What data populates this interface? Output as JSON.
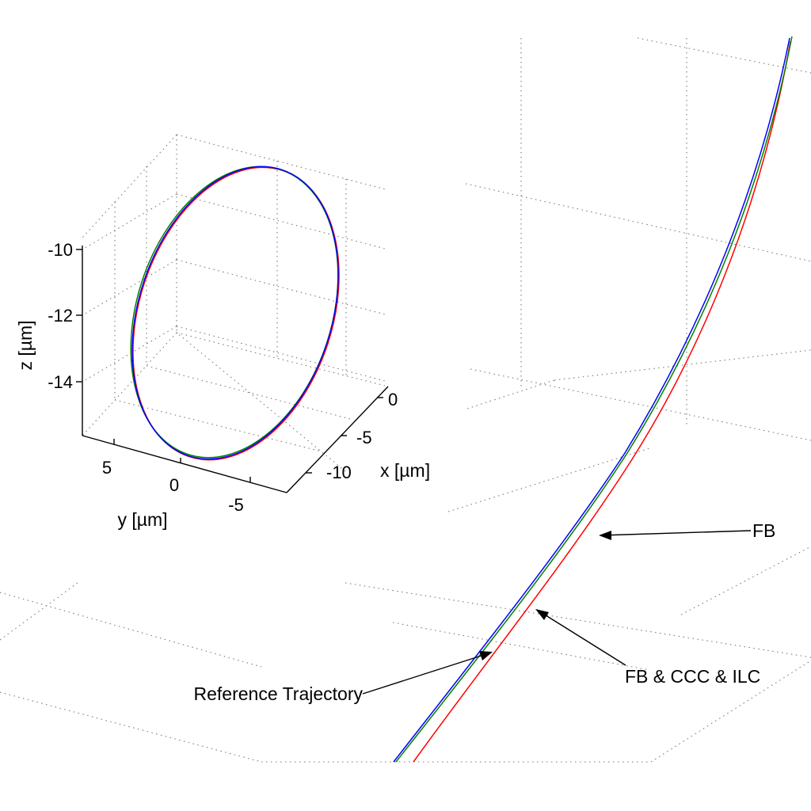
{
  "chart_data": [
    {
      "type": "line",
      "subplot": "inset-3d",
      "title": "",
      "xlabel": "x [µm]",
      "ylabel": "y [µm]",
      "zlabel": "z [µm]",
      "x_ticks": [
        "0",
        "-5",
        "-10"
      ],
      "y_ticks": [
        "5",
        "0",
        "-5"
      ],
      "z_ticks": [
        "-10",
        "-12",
        "-14"
      ],
      "grid": true,
      "series": [
        {
          "color": "#0000ff",
          "shape": "circle"
        },
        {
          "color": "#ff0000",
          "shape": "circle"
        },
        {
          "color": "#008000",
          "shape": "circle"
        }
      ]
    },
    {
      "type": "line",
      "subplot": "zoomed-3d",
      "title": "",
      "grid": true,
      "series": [
        {
          "name": "Reference Trajectory",
          "color": "#0000ff"
        },
        {
          "name": "FB",
          "color": "#ff0000"
        },
        {
          "name": "FB & CCC & ILC",
          "color": "#008000"
        }
      ],
      "annotations": [
        "FB",
        "FB & CCC & ILC",
        "Reference Trajectory"
      ]
    }
  ]
}
